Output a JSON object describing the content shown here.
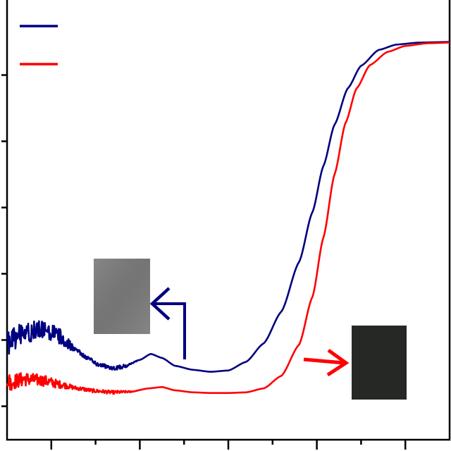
{
  "chart_data": {
    "type": "line",
    "title": "",
    "xlabel": "",
    "ylabel": "",
    "xlim": [
      0,
      10
    ],
    "ylim": [
      0,
      6
    ],
    "x_ticks_major": [
      1,
      3,
      5,
      7,
      9
    ],
    "x_ticks_minor": [
      0,
      2,
      4,
      6,
      8,
      10
    ],
    "y_ticks": [
      0.25,
      1.25,
      2.25,
      3.25,
      4.25,
      5.25
    ],
    "grid": false,
    "legend_position": "top-left",
    "series": [
      {
        "color": "#000080",
        "noise": [
          [
            0,
            0.35
          ],
          [
            1.2,
            0.26
          ],
          [
            1.6,
            0.06
          ],
          [
            2.6,
            0.06
          ],
          [
            3.0,
            0.0
          ],
          [
            10,
            0.0
          ]
        ],
        "points": [
          [
            0.0,
            1.2
          ],
          [
            0.3,
            1.33
          ],
          [
            0.6,
            1.39
          ],
          [
            0.9,
            1.38
          ],
          [
            1.2,
            1.3
          ],
          [
            1.5,
            1.14
          ],
          [
            1.8,
            0.98
          ],
          [
            2.1,
            0.87
          ],
          [
            2.4,
            0.82
          ],
          [
            2.7,
            0.86
          ],
          [
            3.0,
            0.95
          ],
          [
            3.25,
            1.04
          ],
          [
            3.5,
            0.98
          ],
          [
            3.8,
            0.86
          ],
          [
            4.2,
            0.8
          ],
          [
            4.6,
            0.77
          ],
          [
            5.0,
            0.79
          ],
          [
            5.4,
            0.92
          ],
          [
            5.8,
            1.2
          ],
          [
            6.2,
            1.68
          ],
          [
            6.6,
            2.43
          ],
          [
            6.9,
            3.18
          ],
          [
            7.15,
            3.88
          ],
          [
            7.4,
            4.5
          ],
          [
            7.7,
            5.05
          ],
          [
            8.0,
            5.39
          ],
          [
            8.4,
            5.63
          ],
          [
            8.8,
            5.71
          ],
          [
            9.3,
            5.74
          ],
          [
            10.0,
            5.75
          ]
        ]
      },
      {
        "color": "#ff0000",
        "noise": [
          [
            0,
            0.25
          ],
          [
            1.0,
            0.15
          ],
          [
            1.5,
            0.06
          ],
          [
            2.5,
            0.05
          ],
          [
            3.0,
            0.0
          ],
          [
            10,
            0.0
          ]
        ],
        "points": [
          [
            0.0,
            0.6
          ],
          [
            0.4,
            0.66
          ],
          [
            0.8,
            0.64
          ],
          [
            1.2,
            0.58
          ],
          [
            1.6,
            0.52
          ],
          [
            2.0,
            0.48
          ],
          [
            2.4,
            0.46
          ],
          [
            2.8,
            0.47
          ],
          [
            3.2,
            0.52
          ],
          [
            3.5,
            0.54
          ],
          [
            3.8,
            0.49
          ],
          [
            4.2,
            0.46
          ],
          [
            4.6,
            0.45
          ],
          [
            5.0,
            0.45
          ],
          [
            5.4,
            0.46
          ],
          [
            5.8,
            0.52
          ],
          [
            6.2,
            0.71
          ],
          [
            6.6,
            1.18
          ],
          [
            6.9,
            1.9
          ],
          [
            7.15,
            2.8
          ],
          [
            7.4,
            3.75
          ],
          [
            7.65,
            4.53
          ],
          [
            7.9,
            5.05
          ],
          [
            8.2,
            5.4
          ],
          [
            8.6,
            5.6
          ],
          [
            9.0,
            5.69
          ],
          [
            9.5,
            5.73
          ],
          [
            10.0,
            5.74
          ]
        ]
      }
    ],
    "annotations": [
      {
        "kind": "inset-photo",
        "fill": "#7b7b7b",
        "target_series": 0,
        "arrow_color": "#000080"
      },
      {
        "kind": "inset-photo",
        "fill": "#262826",
        "target_series": 1,
        "arrow_color": "#ff0000"
      }
    ]
  }
}
